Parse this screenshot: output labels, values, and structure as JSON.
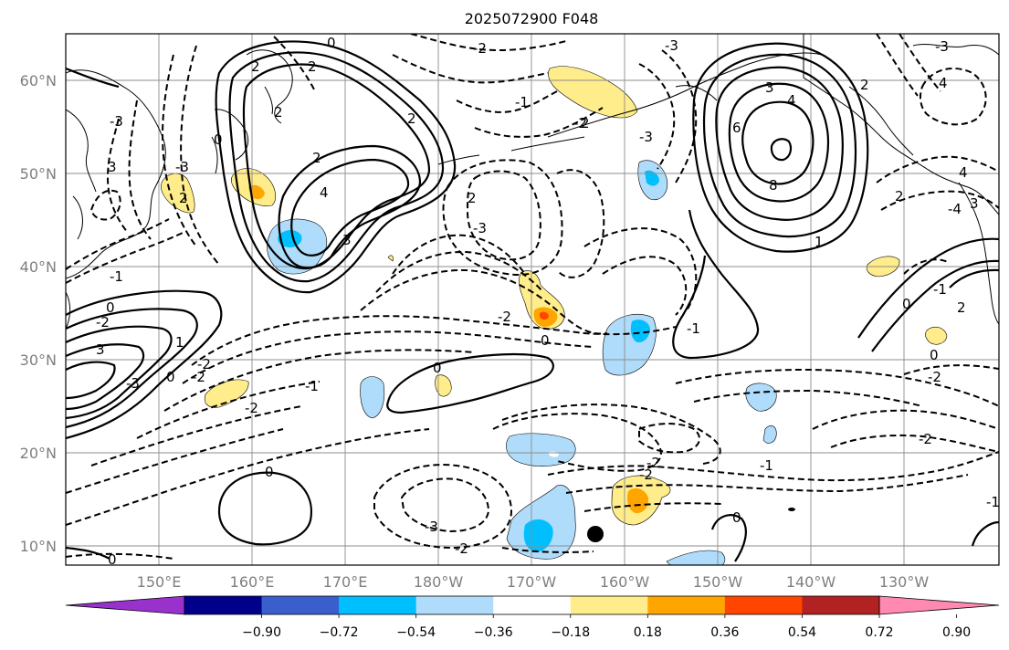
{
  "title": "2025072900 F048",
  "lat_ticks": [
    "60°N",
    "50°N",
    "40°N",
    "30°N",
    "20°N",
    "10°N"
  ],
  "lon_ticks": [
    "150°E",
    "160°E",
    "170°E",
    "180°W",
    "170°W",
    "160°W",
    "150°W",
    "140°W",
    "130°W"
  ],
  "colorbar": {
    "tick_labels": [
      "−0.90",
      "−0.72",
      "−0.54",
      "−0.36",
      "−0.18",
      "0.18",
      "0.36",
      "0.54",
      "0.72",
      "0.90"
    ],
    "colors": [
      "#9932cc",
      "#00008b",
      "#3a5fcd",
      "#00bfff",
      "#afdcfa",
      "#ffffff",
      "#ffec8b",
      "#ffa500",
      "#ff4500",
      "#b22222",
      "#ff89b0"
    ]
  },
  "contour_labels": [
    "0",
    "2",
    "2",
    "2",
    "-3",
    "3",
    "-3",
    "2",
    "-2",
    "0",
    "2",
    "2",
    "2",
    "3",
    "4",
    "-2",
    "2",
    "-1",
    "-2",
    "-3",
    "-3",
    "-3",
    "-1",
    "-2",
    "-3",
    "3",
    "4",
    "6",
    "8",
    "4",
    "3",
    "2",
    "1",
    "-1",
    "-2",
    "-3",
    "-4",
    "0",
    "1",
    "-2",
    "0",
    "2",
    "-1",
    "-2",
    "0",
    "2",
    "4",
    "3",
    "-2",
    "0",
    "-1",
    "0",
    "-2",
    "-3",
    "-2",
    "0",
    "0",
    "-1",
    "-2",
    "-1",
    "-2",
    "0",
    "0"
  ],
  "marker": "station-dot"
}
